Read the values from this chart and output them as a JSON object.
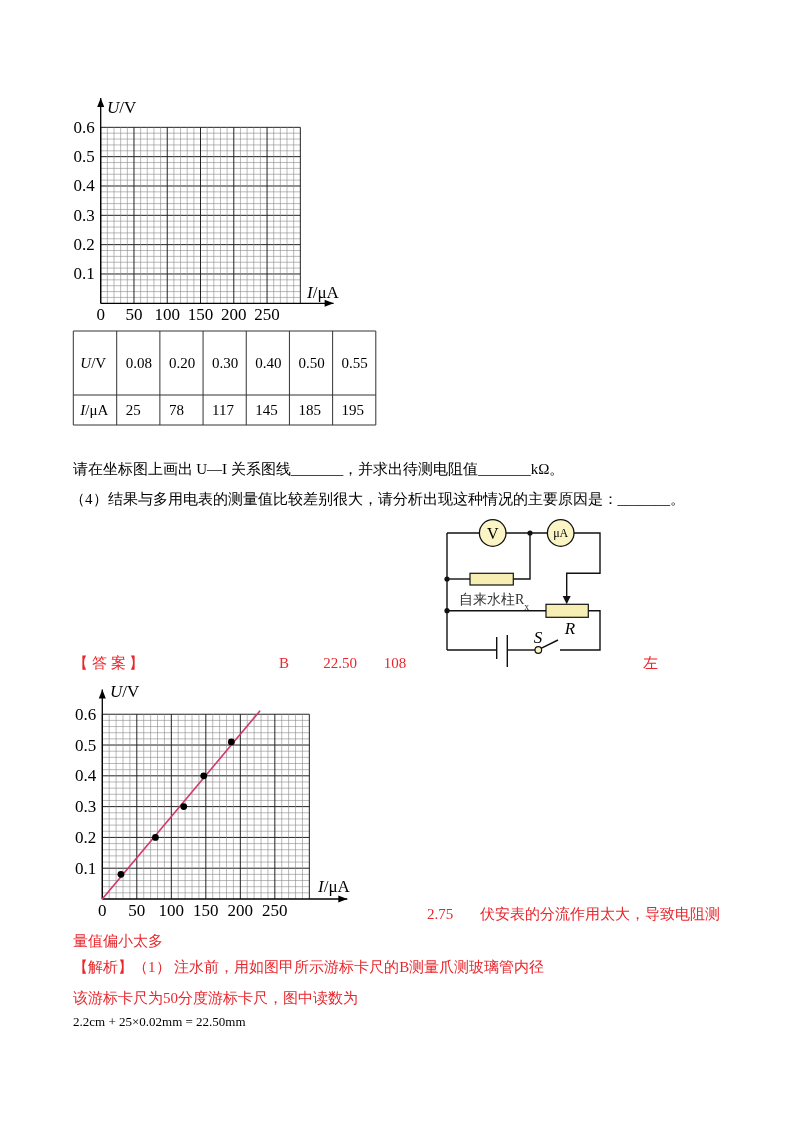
{
  "chart_data": [
    {
      "type": "scatter",
      "xlabel": "I/μA",
      "ylabel": "U/V",
      "xlim": [
        0,
        350
      ],
      "ylim": [
        0,
        0.7
      ],
      "grid": true,
      "xticks": [
        0,
        {
          "value": 10,
          "label": null
        },
        {
          "value": 20,
          "label": null
        },
        {
          "value": 30,
          "label": null
        },
        {
          "value": 40,
          "label": null
        },
        50,
        {
          "value": 60,
          "label": null
        },
        {
          "value": 70,
          "label": null
        },
        {
          "value": 80,
          "label": null
        },
        {
          "value": 90,
          "label": null
        },
        100,
        {
          "value": 110,
          "label": null
        },
        {
          "value": 120,
          "label": null
        },
        {
          "value": 130,
          "label": null
        },
        {
          "value": 140,
          "label": null
        },
        150,
        {
          "value": 160,
          "label": null
        },
        {
          "value": 170,
          "label": null
        },
        {
          "value": 180,
          "label": null
        },
        {
          "value": 190,
          "label": null
        },
        200,
        {
          "value": 210,
          "label": null
        },
        {
          "value": 220,
          "label": null
        },
        {
          "value": 230,
          "label": null
        },
        {
          "value": 240,
          "label": null
        },
        250,
        {
          "value": 260,
          "label": null
        },
        {
          "value": 270,
          "label": null
        },
        {
          "value": 280,
          "label": null
        },
        {
          "value": 290,
          "label": null
        },
        {
          "value": 300,
          "label": null
        }
      ],
      "yticks": [
        {
          "value": 0.02,
          "label": null
        },
        {
          "value": 0.04,
          "label": null
        },
        {
          "value": 0.06,
          "label": null
        },
        {
          "value": 0.08,
          "label": null
        },
        0.1,
        {
          "value": 0.12,
          "label": null
        },
        {
          "value": 0.14,
          "label": null
        },
        {
          "value": 0.16,
          "label": null
        },
        {
          "value": 0.18,
          "label": null
        },
        0.2,
        {
          "value": 0.22,
          "label": null
        },
        {
          "value": 0.24,
          "label": null
        },
        {
          "value": 0.26,
          "label": null
        },
        {
          "value": 0.28,
          "label": null
        },
        0.3,
        {
          "value": 0.32,
          "label": null
        },
        {
          "value": 0.34,
          "label": null
        },
        {
          "value": 0.36,
          "label": null
        },
        {
          "value": 0.38,
          "label": null
        },
        0.4,
        {
          "value": 0.42,
          "label": null
        },
        {
          "value": 0.44,
          "label": null
        },
        {
          "value": 0.46,
          "label": null
        },
        {
          "value": 0.48,
          "label": null
        },
        0.5,
        {
          "value": 0.52,
          "label": null
        },
        {
          "value": 0.54,
          "label": null
        },
        {
          "value": 0.56,
          "label": null
        },
        {
          "value": 0.58,
          "label": null
        },
        0.6
      ]
    },
    {
      "type": "other",
      "y_categories": [
        "U/V",
        "I/μA"
      ],
      "cell_labels": [
        [
          "0.08",
          "0.20",
          "0.30",
          "0.40",
          "0.50",
          "0.55"
        ],
        [
          "25",
          "78",
          "117",
          "145",
          "185",
          "195"
        ]
      ],
      "annotations": [
        "请在坐标图上画出 U—I 关系图线_______，并求出待测电阻值_______kΩ。",
        "（4）结果与多用电表的测量值比较差别很大，请分析出现这种情况的主要原因是：_______。"
      ]
    },
    {
      "type": "other",
      "annotations": [
        "V",
        "μA",
        "自来水柱R$_{x}$",
        "R",
        "S"
      ]
    },
    {
      "type": "scatter",
      "xlabel": "I/μA",
      "ylabel": "U/V",
      "xlim": [
        0,
        355
      ],
      "ylim": [
        0,
        0.68
      ],
      "grid": true,
      "series": [
        {
          "type": "scatter",
          "color": "#000000",
          "x": [
            27,
            77,
            118,
            147,
            187
          ],
          "values": [
            0.08,
            0.2,
            0.3,
            0.4,
            0.51
          ]
        },
        {
          "type": "line",
          "color": "#d2386c",
          "x": [
            0,
            228
          ],
          "values": [
            0,
            0.61
          ]
        }
      ],
      "xticks": [
        0,
        {
          "value": 10,
          "label": null
        },
        {
          "value": 20,
          "label": null
        },
        {
          "value": 30,
          "label": null
        },
        {
          "value": 40,
          "label": null
        },
        50,
        {
          "value": 60,
          "label": null
        },
        {
          "value": 70,
          "label": null
        },
        {
          "value": 80,
          "label": null
        },
        {
          "value": 90,
          "label": null
        },
        100,
        {
          "value": 110,
          "label": null
        },
        {
          "value": 120,
          "label": null
        },
        {
          "value": 130,
          "label": null
        },
        {
          "value": 140,
          "label": null
        },
        150,
        {
          "value": 160,
          "label": null
        },
        {
          "value": 170,
          "label": null
        },
        {
          "value": 180,
          "label": null
        },
        {
          "value": 190,
          "label": null
        },
        200,
        {
          "value": 210,
          "label": null
        },
        {
          "value": 220,
          "label": null
        },
        {
          "value": 230,
          "label": null
        },
        {
          "value": 240,
          "label": null
        },
        250,
        {
          "value": 260,
          "label": null
        },
        {
          "value": 270,
          "label": null
        },
        {
          "value": 280,
          "label": null
        },
        {
          "value": 290,
          "label": null
        },
        {
          "value": 300,
          "label": null
        }
      ],
      "yticks": [
        {
          "value": 0.02,
          "label": null
        },
        {
          "value": 0.04,
          "label": null
        },
        {
          "value": 0.06,
          "label": null
        },
        {
          "value": 0.08,
          "label": null
        },
        0.1,
        {
          "value": 0.12,
          "label": null
        },
        {
          "value": 0.14,
          "label": null
        },
        {
          "value": 0.16,
          "label": null
        },
        {
          "value": 0.18,
          "label": null
        },
        0.2,
        {
          "value": 0.22,
          "label": null
        },
        {
          "value": 0.24,
          "label": null
        },
        {
          "value": 0.26,
          "label": null
        },
        {
          "value": 0.28,
          "label": null
        },
        0.3,
        {
          "value": 0.32,
          "label": null
        },
        {
          "value": 0.34,
          "label": null
        },
        {
          "value": 0.36,
          "label": null
        },
        {
          "value": 0.38,
          "label": null
        },
        0.4,
        {
          "value": 0.42,
          "label": null
        },
        {
          "value": 0.44,
          "label": null
        },
        {
          "value": 0.46,
          "label": null
        },
        {
          "value": 0.48,
          "label": null
        },
        0.5,
        {
          "value": 0.52,
          "label": null
        },
        {
          "value": 0.54,
          "label": null
        },
        {
          "value": 0.56,
          "label": null
        },
        {
          "value": 0.58,
          "label": null
        },
        0.6
      ],
      "annotations": [
        "【 答 案 】",
        "B",
        "22.50",
        "108",
        "左",
        "2.75",
        "伏安表的分流作用太大，导致电阻测",
        "量值偏小太多",
        "【解析】（1） 注水前，用如图甲所示游标卡尺的B测量爪测玻璃管内径",
        "该游标卡尺为50分度游标卡尺，图中读数为",
        "2.2cm + 25×0.02mm = 22.50mm"
      ]
    }
  ]
}
